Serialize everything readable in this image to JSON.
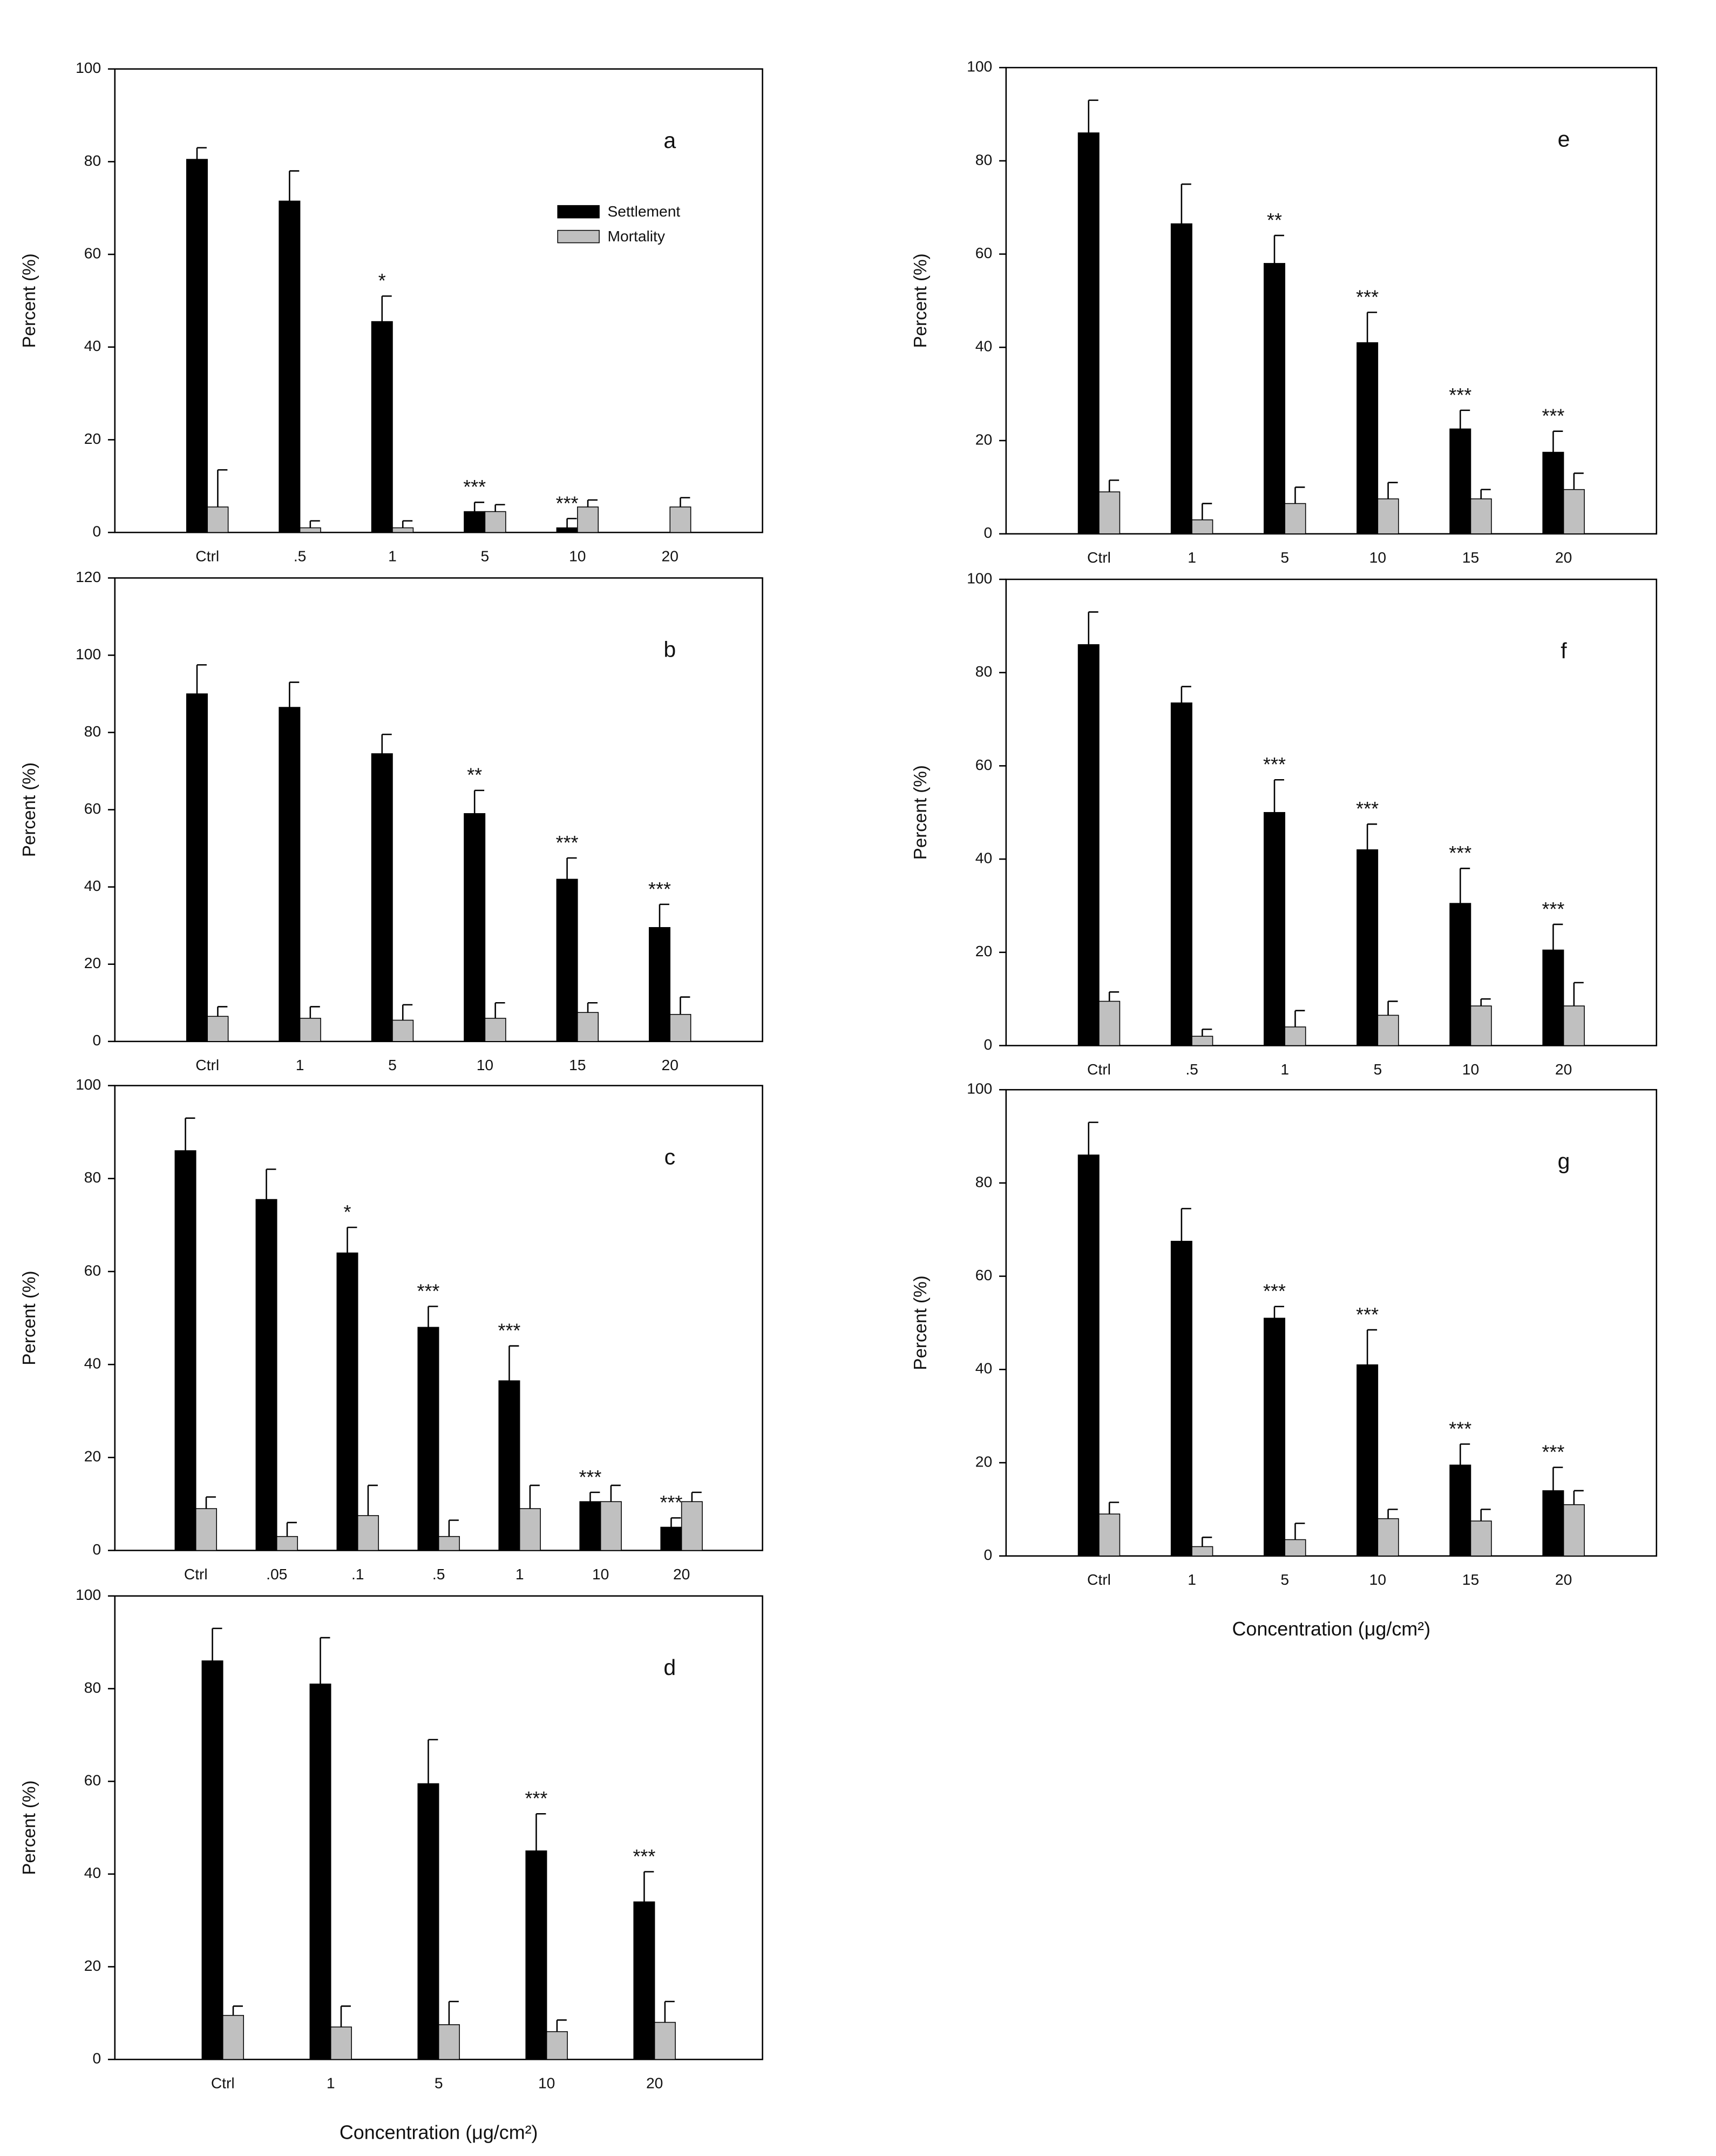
{
  "chart_data": [
    {
      "type": "bar",
      "title": "a",
      "ylabel": "Percent (%)",
      "categories": [
        "Ctrl",
        ".5",
        "1",
        "5",
        "10",
        "20"
      ],
      "series": [
        {
          "name": "Settlement",
          "color": "#000000",
          "values": [
            80.5,
            71.5,
            45.5,
            4.5,
            1,
            null
          ],
          "errors": [
            2.5,
            6.5,
            5.5,
            2,
            2,
            null
          ]
        },
        {
          "name": "Mortality",
          "color": "#c0c0c0",
          "values": [
            5.5,
            1,
            1,
            4.5,
            5.5,
            5.5
          ],
          "errors": [
            8,
            1.5,
            1.5,
            1.5,
            1.5,
            2
          ]
        }
      ],
      "annotations": [
        null,
        null,
        "*",
        "***",
        "***",
        null
      ],
      "legend": "upper right",
      "ylim": [
        0,
        100
      ],
      "yticks": [
        0,
        20,
        40,
        60,
        80,
        100
      ]
    },
    {
      "type": "bar",
      "title": "b",
      "ylabel": "Percent (%)",
      "categories": [
        "Ctrl",
        "1",
        "5",
        "10",
        "15",
        "20"
      ],
      "series": [
        {
          "name": "Settlement",
          "color": "#000000",
          "values": [
            90,
            86.5,
            74.5,
            59,
            42,
            29.5
          ],
          "errors": [
            7.5,
            6.5,
            5,
            6,
            5.5,
            6
          ]
        },
        {
          "name": "Mortality",
          "color": "#c0c0c0",
          "values": [
            6.5,
            6,
            5.5,
            6,
            7.5,
            7
          ],
          "errors": [
            2.5,
            3,
            4,
            4,
            2.5,
            4.5
          ]
        }
      ],
      "annotations": [
        null,
        null,
        null,
        "**",
        "***",
        "***"
      ],
      "ylim": [
        0,
        120
      ],
      "yticks": [
        0,
        20,
        40,
        60,
        80,
        100,
        120
      ]
    },
    {
      "type": "bar",
      "title": "c",
      "ylabel": "Percent (%)",
      "categories": [
        "Ctrl",
        ".05",
        ".1",
        ".5",
        "1",
        "10",
        "20"
      ],
      "series": [
        {
          "name": "Settlement",
          "color": "#000000",
          "values": [
            86,
            75.5,
            64,
            48,
            36.5,
            10.5,
            5
          ],
          "errors": [
            7,
            6.5,
            5.5,
            4.5,
            7.5,
            2,
            2
          ]
        },
        {
          "name": "Mortality",
          "color": "#c0c0c0",
          "values": [
            9,
            3,
            7.5,
            3,
            9,
            10.5,
            10.5
          ],
          "errors": [
            2.5,
            3,
            6.5,
            3.5,
            5,
            3.5,
            2
          ]
        }
      ],
      "annotations": [
        null,
        null,
        "*",
        "***",
        "***",
        "***",
        "***"
      ],
      "ylim": [
        0,
        100
      ],
      "yticks": [
        0,
        20,
        40,
        60,
        80,
        100
      ]
    },
    {
      "type": "bar",
      "title": "d",
      "ylabel": "Percent (%)",
      "xlabel": "Concentration (μg/cm²)",
      "categories": [
        "Ctrl",
        "1",
        "5",
        "10",
        "20"
      ],
      "series": [
        {
          "name": "Settlement",
          "color": "#000000",
          "values": [
            86,
            81,
            59.5,
            45,
            34
          ],
          "errors": [
            7,
            10,
            9.5,
            8,
            6.5
          ]
        },
        {
          "name": "Mortality",
          "color": "#c0c0c0",
          "values": [
            9.5,
            7,
            7.5,
            6,
            8
          ],
          "errors": [
            2,
            4.5,
            5,
            2.5,
            4.5
          ]
        }
      ],
      "annotations": [
        null,
        null,
        null,
        "***",
        "***"
      ],
      "ylim": [
        0,
        100
      ],
      "yticks": [
        0,
        20,
        40,
        60,
        80,
        100
      ]
    },
    {
      "type": "bar",
      "title": "e",
      "ylabel": "Percent (%)",
      "categories": [
        "Ctrl",
        "1",
        "5",
        "10",
        "15",
        "20"
      ],
      "series": [
        {
          "name": "Settlement",
          "color": "#000000",
          "values": [
            86,
            66.5,
            58,
            41,
            22.5,
            17.5
          ],
          "errors": [
            7,
            8.5,
            6,
            6.5,
            4,
            4.5
          ]
        },
        {
          "name": "Mortality",
          "color": "#c0c0c0",
          "values": [
            9,
            3,
            6.5,
            7.5,
            7.5,
            9.5
          ],
          "errors": [
            2.5,
            3.5,
            3.5,
            3.5,
            2,
            3.5
          ]
        }
      ],
      "annotations": [
        null,
        null,
        "**",
        "***",
        "***",
        "***"
      ],
      "ylim": [
        0,
        100
      ],
      "yticks": [
        0,
        20,
        40,
        60,
        80,
        100
      ]
    },
    {
      "type": "bar",
      "title": "f",
      "ylabel": "Percent (%)",
      "categories": [
        "Ctrl",
        ".5",
        "1",
        "5",
        "10",
        "20"
      ],
      "series": [
        {
          "name": "Settlement",
          "color": "#000000",
          "values": [
            86,
            73.5,
            50,
            42,
            30.5,
            20.5
          ],
          "errors": [
            7,
            3.5,
            7,
            5.5,
            7.5,
            5.5
          ]
        },
        {
          "name": "Mortality",
          "color": "#c0c0c0",
          "values": [
            9.5,
            2,
            4,
            6.5,
            8.5,
            8.5
          ],
          "errors": [
            2,
            1.5,
            3.5,
            3,
            1.5,
            5
          ]
        }
      ],
      "annotations": [
        null,
        null,
        "***",
        "***",
        "***",
        "***"
      ],
      "ylim": [
        0,
        100
      ],
      "yticks": [
        0,
        20,
        40,
        60,
        80,
        100
      ]
    },
    {
      "type": "bar",
      "title": "g",
      "ylabel": "Percent (%)",
      "xlabel": "Concentration (μg/cm²)",
      "categories": [
        "Ctrl",
        "1",
        "5",
        "10",
        "15",
        "20"
      ],
      "series": [
        {
          "name": "Settlement",
          "color": "#000000",
          "values": [
            86,
            67.5,
            51,
            41,
            19.5,
            14
          ],
          "errors": [
            7,
            7,
            2.5,
            7.5,
            4.5,
            5
          ]
        },
        {
          "name": "Mortality",
          "color": "#c0c0c0",
          "values": [
            9,
            2,
            3.5,
            8,
            7.5,
            11
          ],
          "errors": [
            2.5,
            2,
            3.5,
            2,
            2.5,
            3
          ]
        }
      ],
      "annotations": [
        null,
        null,
        "***",
        "***",
        "***",
        "***"
      ],
      "ylim": [
        0,
        100
      ],
      "yticks": [
        0,
        20,
        40,
        60,
        80,
        100
      ]
    }
  ]
}
